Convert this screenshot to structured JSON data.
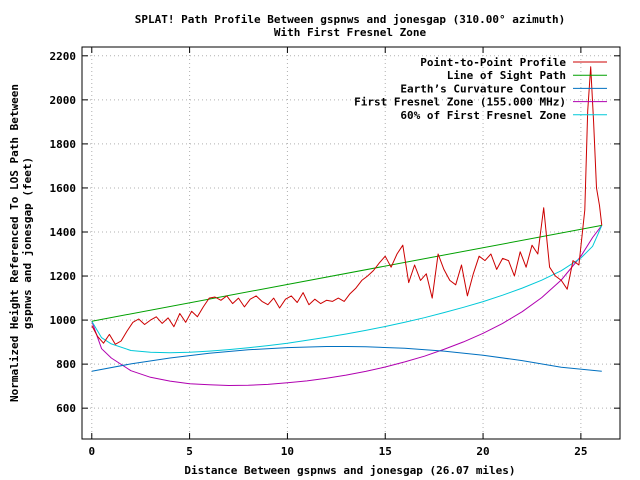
{
  "chart_data": {
    "type": "line",
    "title_line1": "SPLAT! Path Profile Between gspnws and jonesgap (310.00° azimuth)",
    "title_line2": "With First Fresnel Zone",
    "xlabel": "Distance Between gspnws and jonesgap (26.07 miles)",
    "ylabel_line1": "Normalized Height Referenced To LOS Path Between",
    "ylabel_line2": "gspnws and jonesgap (feet)",
    "xlim": [
      -0.5,
      27.0
    ],
    "ylim": [
      460,
      2240
    ],
    "x_ticks": [
      0,
      5,
      10,
      15,
      20,
      25
    ],
    "y_ticks": [
      600,
      800,
      1000,
      1200,
      1400,
      1600,
      1800,
      2000,
      2200
    ],
    "legend_position": "top-right",
    "series": [
      {
        "name": "Point-to-Point Profile",
        "color": "#cc0000",
        "x": [
          0,
          0.3,
          0.6,
          0.9,
          1.2,
          1.5,
          1.8,
          2.1,
          2.4,
          2.7,
          3.0,
          3.3,
          3.6,
          3.9,
          4.2,
          4.5,
          4.8,
          5.1,
          5.4,
          5.7,
          6.0,
          6.3,
          6.6,
          6.9,
          7.2,
          7.5,
          7.8,
          8.1,
          8.4,
          8.7,
          9.0,
          9.3,
          9.6,
          9.9,
          10.2,
          10.5,
          10.8,
          11.1,
          11.4,
          11.7,
          12.0,
          12.3,
          12.6,
          12.9,
          13.2,
          13.5,
          13.8,
          14.1,
          14.4,
          14.7,
          15.0,
          15.3,
          15.6,
          15.9,
          16.2,
          16.5,
          16.8,
          17.1,
          17.4,
          17.7,
          18.0,
          18.3,
          18.6,
          18.9,
          19.2,
          19.5,
          19.8,
          20.1,
          20.4,
          20.7,
          21.0,
          21.3,
          21.6,
          21.9,
          22.2,
          22.5,
          22.8,
          23.1,
          23.4,
          23.7,
          24.0,
          24.3,
          24.6,
          24.9,
          25.2,
          25.35,
          25.5,
          25.65,
          25.8,
          25.95,
          26.07
        ],
        "y": [
          975,
          925,
          895,
          935,
          890,
          905,
          950,
          990,
          1005,
          980,
          1000,
          1015,
          985,
          1010,
          970,
          1030,
          990,
          1040,
          1015,
          1060,
          1100,
          1105,
          1090,
          1110,
          1075,
          1100,
          1060,
          1095,
          1110,
          1085,
          1070,
          1100,
          1055,
          1095,
          1110,
          1080,
          1125,
          1070,
          1095,
          1075,
          1090,
          1085,
          1100,
          1085,
          1120,
          1145,
          1180,
          1200,
          1225,
          1260,
          1290,
          1240,
          1300,
          1340,
          1170,
          1250,
          1180,
          1210,
          1100,
          1300,
          1230,
          1180,
          1160,
          1250,
          1110,
          1210,
          1290,
          1270,
          1300,
          1230,
          1280,
          1270,
          1200,
          1310,
          1240,
          1340,
          1300,
          1510,
          1240,
          1200,
          1180,
          1140,
          1270,
          1250,
          1500,
          1950,
          2150,
          1900,
          1600,
          1520,
          1430
        ]
      },
      {
        "name": "Line of Sight Path",
        "color": "#00a000",
        "x": [
          0,
          26.07
        ],
        "y": [
          995,
          1430
        ]
      },
      {
        "name": "Earth’s Curvature Contour",
        "color": "#0070c0",
        "x": [
          0,
          2,
          4,
          6,
          8,
          10,
          12,
          13.035,
          14,
          16,
          18,
          20,
          22,
          24,
          26.07
        ],
        "y": [
          768,
          801,
          828,
          849,
          865,
          875,
          880,
          880,
          879,
          872,
          859,
          840,
          816,
          786,
          768
        ]
      },
      {
        "name": "First Fresnel Zone (155.000 MHz)",
        "color": "#b000b0",
        "x": [
          0,
          0.5,
          1,
          2,
          3,
          4,
          5,
          6,
          7,
          8,
          9,
          10,
          11,
          12,
          13,
          14,
          15,
          16,
          17,
          18,
          19,
          20,
          21,
          22,
          23,
          24,
          25,
          25.6,
          26.07
        ],
        "y": [
          995,
          870,
          828,
          770,
          740,
          723,
          711,
          706,
          703,
          704,
          708,
          715,
          724,
          736,
          750,
          767,
          787,
          810,
          836,
          867,
          901,
          940,
          985,
          1038,
          1102,
          1182,
          1290,
          1375,
          1430
        ]
      },
      {
        "name": "60% of First Fresnel Zone",
        "color": "#00c8d8",
        "x": [
          0,
          0.5,
          1,
          2,
          3,
          4,
          5,
          6,
          7,
          8,
          9,
          10,
          11,
          12,
          13,
          14,
          15,
          16,
          17,
          18,
          19,
          20,
          21,
          22,
          23,
          24,
          25,
          25.6,
          26.07
        ],
        "y": [
          995,
          920,
          892,
          862,
          854,
          852,
          854,
          859,
          866,
          874,
          884,
          895,
          908,
          922,
          937,
          953,
          971,
          990,
          1011,
          1034,
          1058,
          1084,
          1113,
          1145,
          1181,
          1224,
          1282,
          1335,
          1430
        ]
      }
    ]
  }
}
